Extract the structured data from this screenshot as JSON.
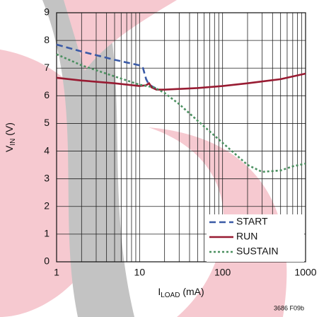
{
  "chart_data": {
    "type": "line",
    "xlabel_parts": [
      "I",
      "LOAD",
      " (mA)"
    ],
    "ylabel_parts": [
      "V",
      "IN",
      " (V)"
    ],
    "footnote": "3686 F09b",
    "xscale": "log",
    "xlim": [
      1,
      1000
    ],
    "ylim": [
      0,
      9
    ],
    "xticks": [
      1,
      10,
      100,
      1000
    ],
    "x_minor_ticks": [
      2,
      3,
      4,
      5,
      6,
      7,
      8,
      9,
      20,
      30,
      40,
      50,
      60,
      70,
      80,
      90,
      200,
      300,
      400,
      500,
      600,
      700,
      800,
      900
    ],
    "yticks": [
      0,
      1,
      2,
      3,
      4,
      5,
      6,
      7,
      8,
      9
    ],
    "grid": true,
    "legend": "lower right",
    "series": [
      {
        "name": "START",
        "color": "#3a5aa6",
        "dash": "dashed",
        "x": [
          1,
          2,
          5,
          10,
          11,
          12,
          13,
          15,
          17
        ],
        "values": [
          7.85,
          7.6,
          7.3,
          7.1,
          7.0,
          6.6,
          6.4,
          6.3,
          6.22
        ]
      },
      {
        "name": "RUN",
        "color": "#981b32",
        "dash": "solid",
        "x": [
          1,
          2,
          5,
          10,
          12,
          13,
          14,
          16,
          20,
          50,
          100,
          200,
          500,
          1000
        ],
        "values": [
          6.65,
          6.55,
          6.45,
          6.35,
          6.38,
          6.45,
          6.3,
          6.22,
          6.22,
          6.28,
          6.35,
          6.45,
          6.6,
          6.8
        ]
      },
      {
        "name": "SUSTAIN",
        "color": "#4b9060",
        "dash": "dotted",
        "x": [
          1,
          2,
          5,
          10,
          15,
          20,
          30,
          50,
          100,
          200,
          300,
          500,
          700,
          1000
        ],
        "values": [
          7.5,
          7.1,
          6.7,
          6.4,
          6.3,
          6.1,
          5.7,
          5.1,
          4.3,
          3.5,
          3.25,
          3.3,
          3.45,
          3.55
        ]
      }
    ]
  }
}
